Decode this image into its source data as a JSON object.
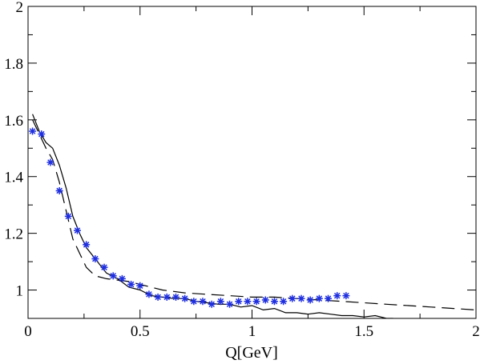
{
  "chart_data": {
    "type": "line",
    "title": "",
    "xlabel": "Q[GeV]",
    "ylabel": "",
    "xlim": [
      0,
      2
    ],
    "ylim": [
      0.9,
      2
    ],
    "x_ticks": [
      {
        "value": 0,
        "label": "0"
      },
      {
        "value": 0.5,
        "label": "0.5"
      },
      {
        "value": 1,
        "label": "1"
      },
      {
        "value": 1.5,
        "label": "1.5"
      },
      {
        "value": 2,
        "label": "2"
      }
    ],
    "y_ticks": [
      {
        "value": 1,
        "label": "1"
      },
      {
        "value": 1.2,
        "label": "1.2"
      },
      {
        "value": 1.4,
        "label": "1.4"
      },
      {
        "value": 1.6,
        "label": "1.6"
      },
      {
        "value": 1.8,
        "label": "1.8"
      },
      {
        "value": 2,
        "label": "2"
      }
    ],
    "grid": false,
    "series": [
      {
        "style": "solid",
        "color": "#000000",
        "x": [
          0.02,
          0.05,
          0.08,
          0.11,
          0.14,
          0.17,
          0.2,
          0.23,
          0.26,
          0.3,
          0.35,
          0.4,
          0.45,
          0.5,
          0.55,
          0.6,
          0.65,
          0.7,
          0.75,
          0.8,
          0.85,
          0.9,
          0.95,
          1.0,
          1.05,
          1.1,
          1.15,
          1.2,
          1.25,
          1.3,
          1.35,
          1.4,
          1.45,
          1.5,
          1.55,
          1.6,
          1.63
        ],
        "y": [
          1.62,
          1.56,
          1.52,
          1.5,
          1.44,
          1.36,
          1.26,
          1.2,
          1.15,
          1.11,
          1.06,
          1.04,
          1.01,
          1.0,
          0.98,
          0.975,
          0.97,
          0.97,
          0.96,
          0.955,
          0.95,
          0.95,
          0.94,
          0.945,
          0.93,
          0.935,
          0.92,
          0.92,
          0.915,
          0.92,
          0.915,
          0.91,
          0.91,
          0.905,
          0.91,
          0.9,
          0.9
        ]
      },
      {
        "style": "dashed",
        "color": "#000000",
        "x": [
          0.02,
          0.05,
          0.08,
          0.11,
          0.14,
          0.17,
          0.2,
          0.23,
          0.26,
          0.3,
          0.35,
          0.4,
          0.45,
          0.5,
          0.6,
          0.7,
          0.8,
          0.9,
          1.0,
          1.1,
          1.2,
          1.3,
          1.4,
          1.5,
          1.6,
          1.7,
          1.8,
          1.9,
          2.0
        ],
        "y": [
          1.6,
          1.55,
          1.5,
          1.46,
          1.38,
          1.28,
          1.18,
          1.13,
          1.08,
          1.05,
          1.04,
          1.035,
          1.03,
          1.02,
          1.0,
          0.99,
          0.985,
          0.98,
          0.975,
          0.975,
          0.97,
          0.965,
          0.96,
          0.955,
          0.95,
          0.945,
          0.94,
          0.935,
          0.93
        ]
      },
      {
        "style": "markers",
        "marker": "asterisk",
        "color": "#1f2fe0",
        "x": [
          0.02,
          0.06,
          0.1,
          0.14,
          0.18,
          0.22,
          0.26,
          0.3,
          0.34,
          0.38,
          0.42,
          0.46,
          0.5,
          0.54,
          0.58,
          0.62,
          0.66,
          0.7,
          0.74,
          0.78,
          0.82,
          0.86,
          0.9,
          0.94,
          0.98,
          1.02,
          1.06,
          1.1,
          1.14,
          1.18,
          1.22,
          1.26,
          1.3,
          1.34,
          1.38,
          1.42
        ],
        "y": [
          1.56,
          1.55,
          1.45,
          1.35,
          1.26,
          1.21,
          1.16,
          1.11,
          1.08,
          1.05,
          1.04,
          1.02,
          1.015,
          0.985,
          0.975,
          0.975,
          0.975,
          0.97,
          0.96,
          0.96,
          0.95,
          0.96,
          0.95,
          0.96,
          0.96,
          0.96,
          0.965,
          0.96,
          0.96,
          0.97,
          0.97,
          0.965,
          0.97,
          0.97,
          0.98,
          0.98
        ]
      }
    ]
  }
}
